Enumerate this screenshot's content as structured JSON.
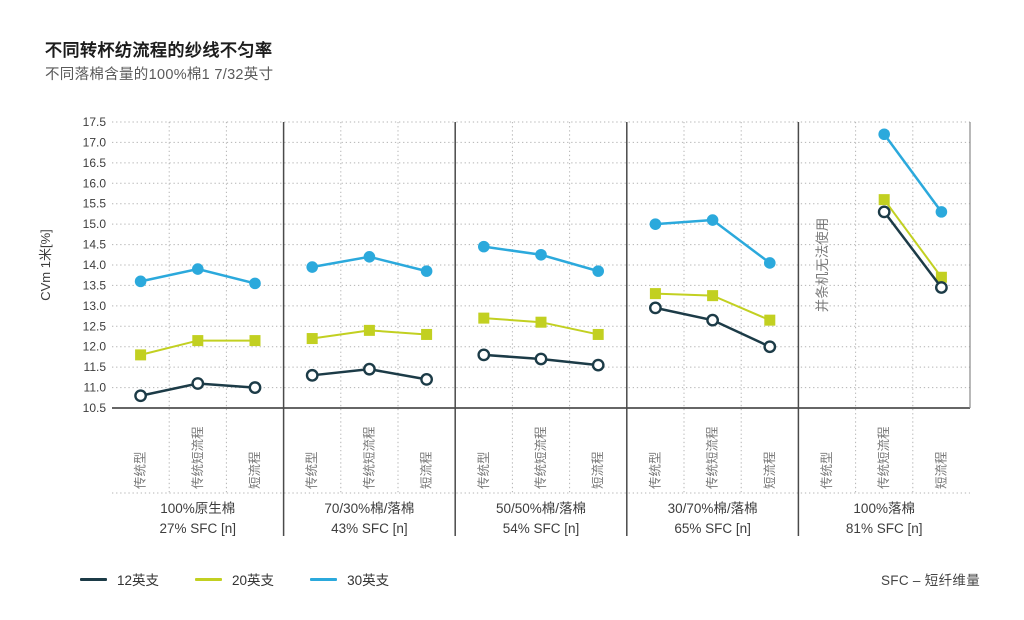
{
  "chart_data": {
    "type": "line",
    "title": "不同转杯纺流程的纱线不匀率",
    "subtitle": "不同落棉含量的100%棉1 7/32英寸",
    "ylabel": "CVm 1米[%]",
    "ylim": [
      10.5,
      17.5
    ],
    "ytick_step": 0.5,
    "grid": "dotted-horizontal",
    "legend_position": "bottom-left",
    "categories": [
      "传统型",
      "传统短流程",
      "短流程"
    ],
    "panels": [
      {
        "label": "100%原生棉",
        "sublabel": "27% SFC [n]"
      },
      {
        "label": "70/30%棉/落棉",
        "sublabel": "43% SFC [n]"
      },
      {
        "label": "50/50%棉/落棉",
        "sublabel": "54% SFC [n]"
      },
      {
        "label": "30/70%棉/落棉",
        "sublabel": "65% SFC [n]"
      },
      {
        "label": "100%落棉",
        "sublabel": "81% SFC [n]"
      }
    ],
    "series": [
      {
        "name": "12英支",
        "color": "#1c3b47",
        "marker": "open-circle",
        "values": [
          [
            10.8,
            11.1,
            11.0
          ],
          [
            11.3,
            11.45,
            11.2
          ],
          [
            11.8,
            11.7,
            11.55
          ],
          [
            12.95,
            12.65,
            12.0
          ],
          [
            null,
            15.3,
            13.45
          ]
        ]
      },
      {
        "name": "20英支",
        "color": "#c2d021",
        "marker": "square",
        "values": [
          [
            11.8,
            12.15,
            12.15
          ],
          [
            12.2,
            12.4,
            12.3
          ],
          [
            12.7,
            12.6,
            12.3
          ],
          [
            13.3,
            13.25,
            12.65
          ],
          [
            null,
            15.6,
            13.7
          ]
        ]
      },
      {
        "name": "30英支",
        "color": "#2ba9dc",
        "marker": "circle",
        "values": [
          [
            13.6,
            13.9,
            13.55
          ],
          [
            13.95,
            14.2,
            13.85
          ],
          [
            14.45,
            14.25,
            13.85
          ],
          [
            15.0,
            15.1,
            14.05
          ],
          [
            null,
            17.2,
            15.3
          ]
        ]
      }
    ],
    "annotation": {
      "text": "并条机无法使用",
      "panel": 4,
      "category": 0
    },
    "footnote": "SFC – 短纤维量"
  }
}
